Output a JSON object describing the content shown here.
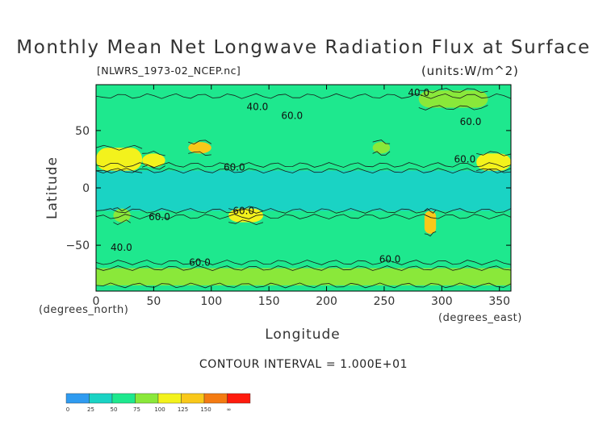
{
  "chart_data": {
    "type": "heatmap",
    "title": "Monthly Mean Net Longwave Radiation Flux at Surface",
    "subtitle_left": "[NLWRS_1973-02_NCEP.nc]",
    "subtitle_right": "(units:W/m^2)",
    "xlabel": "Longitude",
    "ylabel": "Latitude",
    "x_unit_label": "(degrees_east)",
    "y_unit_label": "(degrees_north)",
    "xlim": [
      0,
      360
    ],
    "ylim": [
      -90,
      90
    ],
    "x_ticks": [
      0,
      50,
      100,
      150,
      200,
      250,
      300,
      350
    ],
    "y_ticks": [
      50,
      0,
      -50
    ],
    "y_tick_labels": [
      "50",
      "0",
      "−50"
    ],
    "contour_interval_text": "CONTOUR INTERVAL = 1.000E+01",
    "contour_labels": [
      {
        "text": "40.0",
        "x": 140,
        "y": 68
      },
      {
        "text": "60.0",
        "x": 170,
        "y": 60
      },
      {
        "text": "40.0",
        "x": 280,
        "y": 80
      },
      {
        "text": "60.0",
        "x": 325,
        "y": 55
      },
      {
        "text": "60.0",
        "x": 120,
        "y": 15
      },
      {
        "text": "60.0",
        "x": 320,
        "y": 22
      },
      {
        "text": "60.0",
        "x": 55,
        "y": -28
      },
      {
        "text": "60.0",
        "x": 128,
        "y": -23
      },
      {
        "text": "40.0",
        "x": 22,
        "y": -55
      },
      {
        "text": "60.0",
        "x": 90,
        "y": -68
      },
      {
        "text": "60.0",
        "x": 255,
        "y": -65
      }
    ],
    "colorbar": {
      "labels": [
        "0",
        "25",
        "50",
        "75",
        "100",
        "125",
        "150",
        "∞"
      ],
      "colors": [
        "#2f9bf0",
        "#1ad3c4",
        "#1ee88e",
        "#8ae83a",
        "#f3f21c",
        "#f9c81a",
        "#f47b12",
        "#ff1b0d"
      ]
    },
    "regions": [
      {
        "name": "tropical-band",
        "lon": [
          0,
          360
        ],
        "lat": [
          -20,
          15
        ],
        "value": 45
      },
      {
        "name": "northern-midlat",
        "lon": [
          0,
          360
        ],
        "lat": [
          20,
          80
        ],
        "value": 60
      },
      {
        "name": "southern-ocean",
        "lon": [
          0,
          360
        ],
        "lat": [
          -65,
          -25
        ],
        "value": 50
      },
      {
        "name": "sahara",
        "lon": [
          0,
          40
        ],
        "lat": [
          15,
          35
        ],
        "value": 110
      },
      {
        "name": "arabia",
        "lon": [
          40,
          60
        ],
        "lat": [
          18,
          30
        ],
        "value": 100
      },
      {
        "name": "tibet",
        "lon": [
          80,
          100
        ],
        "lat": [
          30,
          40
        ],
        "value": 130
      },
      {
        "name": "australia",
        "lon": [
          115,
          145
        ],
        "lat": [
          -30,
          -18
        ],
        "value": 120
      },
      {
        "name": "southern-africa",
        "lon": [
          15,
          30
        ],
        "lat": [
          -30,
          -18
        ],
        "value": 95
      },
      {
        "name": "andes",
        "lon": [
          285,
          295
        ],
        "lat": [
          -40,
          -20
        ],
        "value": 130
      },
      {
        "name": "north-america-west",
        "lon": [
          240,
          255
        ],
        "lat": [
          30,
          40
        ],
        "value": 95
      },
      {
        "name": "mexico",
        "lon": [
          330,
          360
        ],
        "lat": [
          15,
          30
        ],
        "value": 105
      },
      {
        "name": "antarctic-coast",
        "lon": [
          0,
          360
        ],
        "lat": [
          -85,
          -70
        ],
        "value": 90
      },
      {
        "name": "arctic-greenland",
        "lon": [
          280,
          340
        ],
        "lat": [
          70,
          85
        ],
        "value": 85
      }
    ]
  }
}
